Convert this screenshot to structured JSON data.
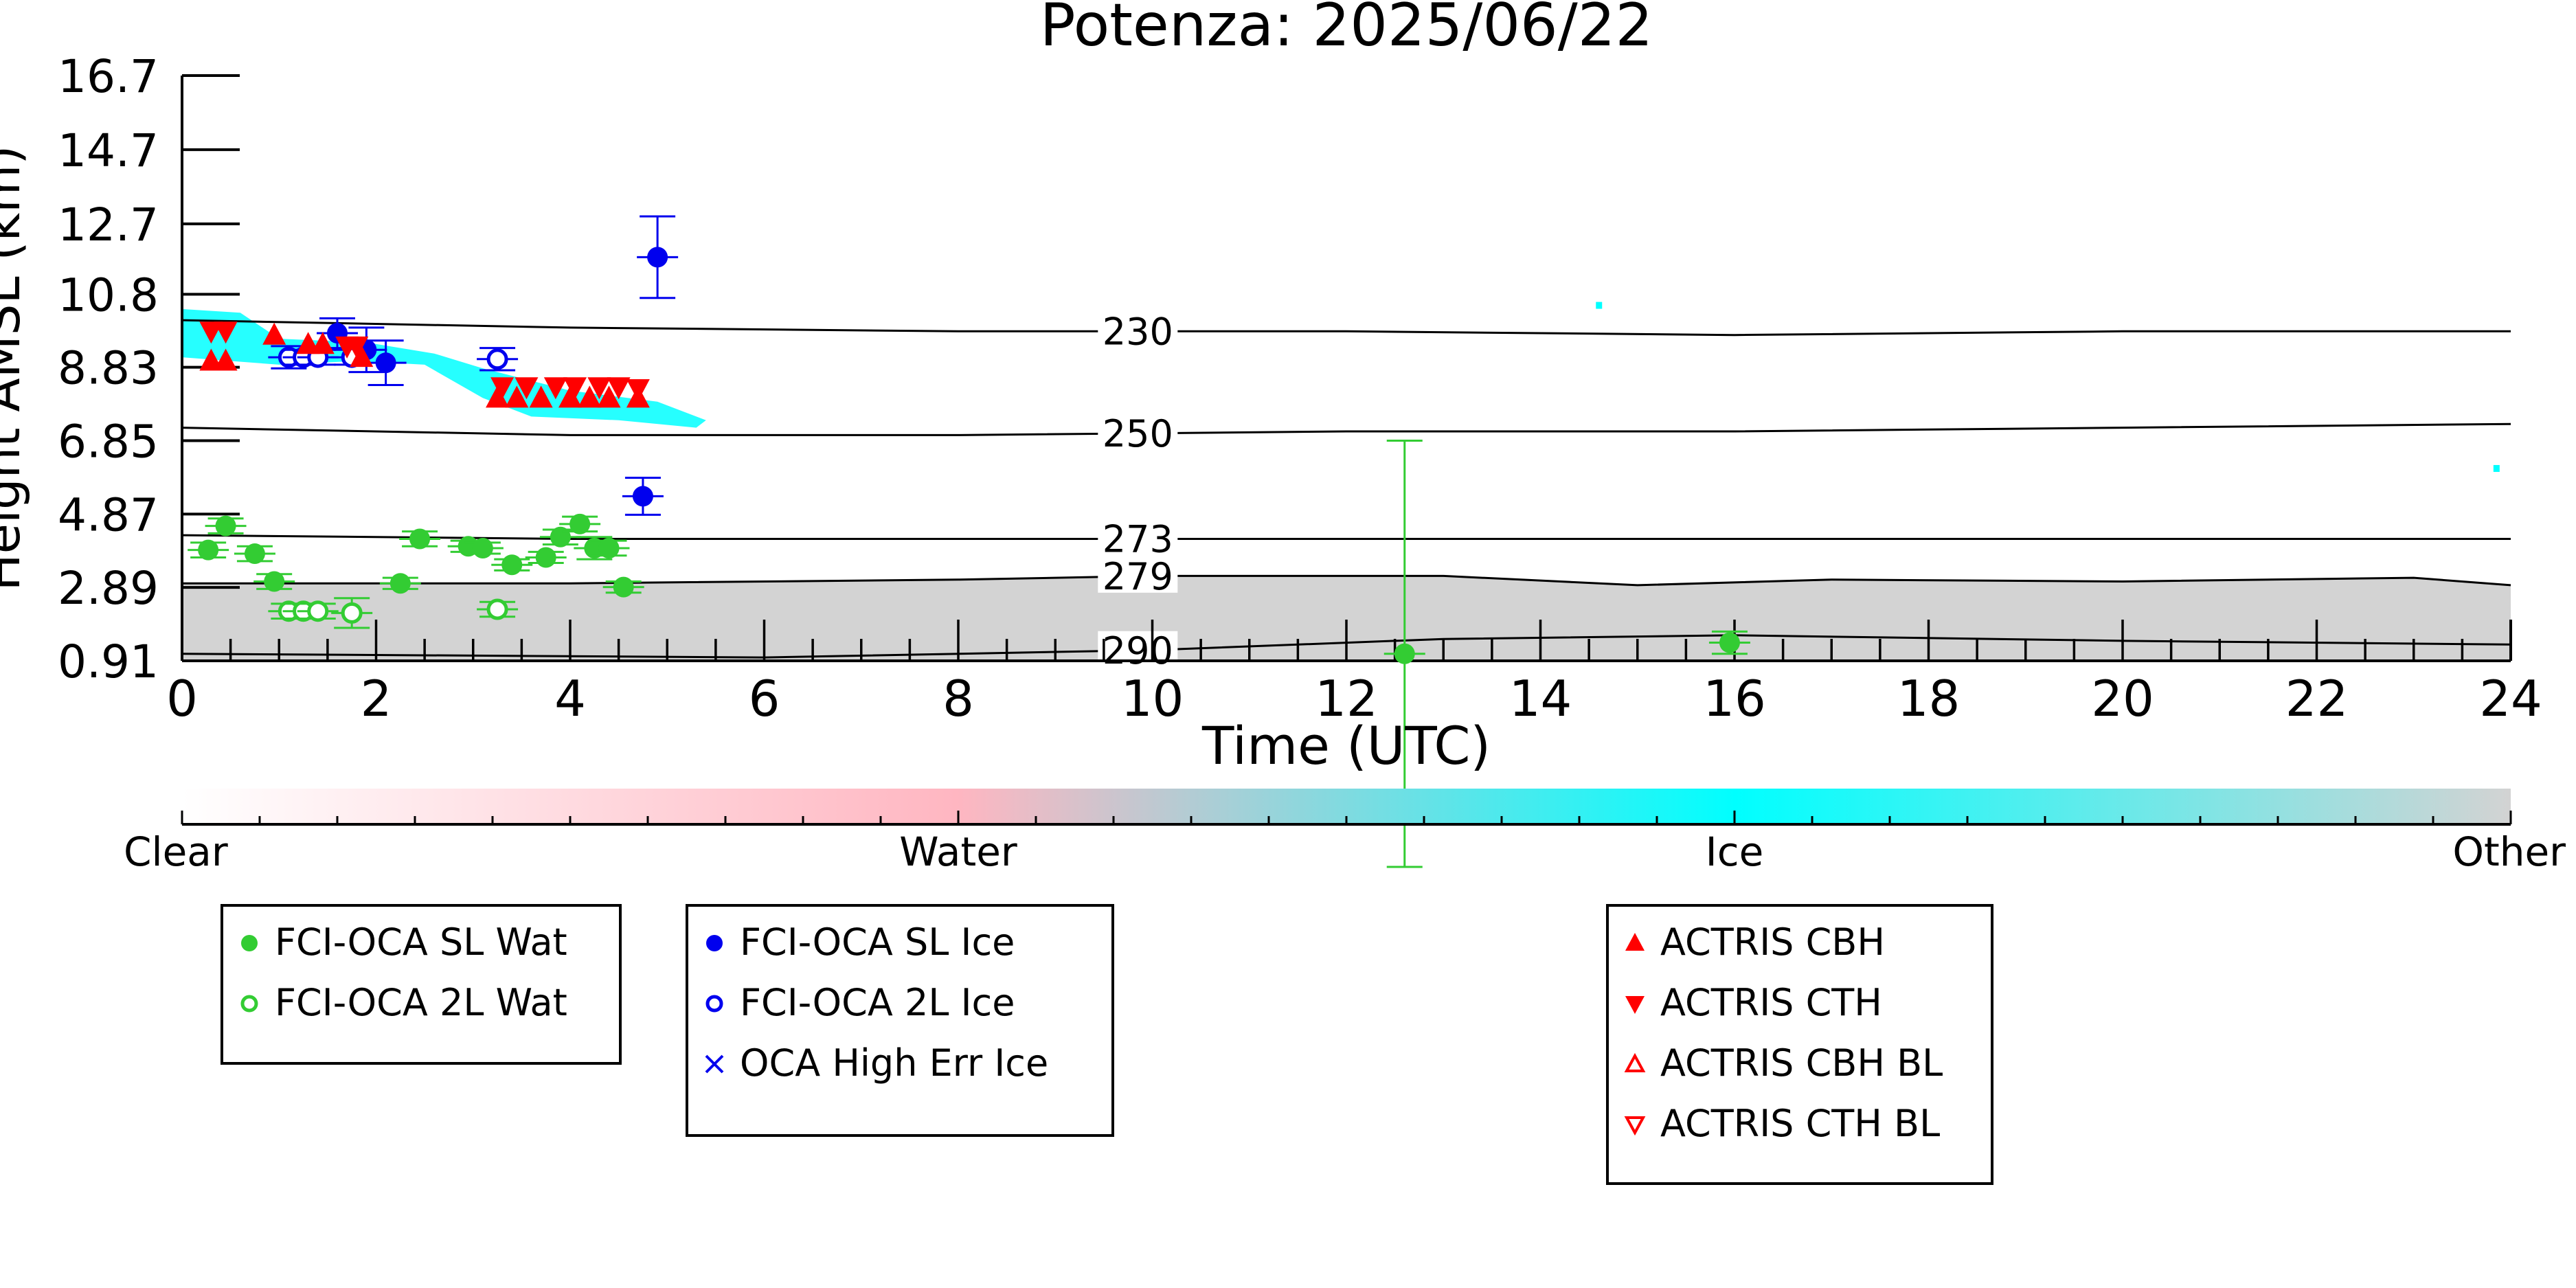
{
  "chart_data": {
    "type": "scatter",
    "title": "Potenza: 2025/06/22",
    "xlabel": "Time (UTC)",
    "ylabel": "Height AMSL (km)",
    "xlim": [
      0,
      24
    ],
    "ylim": [
      0.91,
      16.7
    ],
    "x_ticks": [
      0,
      2,
      4,
      6,
      8,
      10,
      12,
      14,
      16,
      18,
      20,
      22,
      24
    ],
    "y_ticks": [
      "0.91",
      "2.89",
      "4.87",
      "6.85",
      "8.83",
      "10.8",
      "12.7",
      "14.7",
      "16.7"
    ],
    "y_tick_values": [
      0.91,
      2.89,
      4.87,
      6.85,
      8.83,
      10.8,
      12.7,
      14.7,
      16.7
    ],
    "colors": {
      "water_marker": "#33cc33",
      "ice_marker": "#0000ee",
      "actris": "#ff0000",
      "cloud_ice": "#00ffff",
      "other_fill": "#d3d3d3"
    },
    "isotherms": [
      {
        "label": "230",
        "label_x": 9.85,
        "points": [
          [
            0,
            10.1
          ],
          [
            4,
            9.9
          ],
          [
            8,
            9.8
          ],
          [
            12,
            9.8
          ],
          [
            16,
            9.7
          ],
          [
            20,
            9.8
          ],
          [
            24,
            9.8
          ]
        ]
      },
      {
        "label": "250",
        "label_x": 9.85,
        "points": [
          [
            0,
            7.2
          ],
          [
            4,
            7.0
          ],
          [
            8,
            7.0
          ],
          [
            12,
            7.1
          ],
          [
            16,
            7.1
          ],
          [
            20,
            7.2
          ],
          [
            24,
            7.3
          ]
        ]
      },
      {
        "label": "273",
        "label_x": 9.85,
        "points": [
          [
            0,
            4.3
          ],
          [
            4,
            4.2
          ],
          [
            8,
            4.2
          ],
          [
            12,
            4.2
          ],
          [
            16,
            4.2
          ],
          [
            20,
            4.2
          ],
          [
            24,
            4.2
          ]
        ]
      },
      {
        "label": "279",
        "label_x": 9.85,
        "points": [
          [
            0,
            3.0
          ],
          [
            4,
            3.0
          ],
          [
            8,
            3.1
          ],
          [
            10,
            3.2
          ],
          [
            13,
            3.2
          ],
          [
            15,
            2.95
          ],
          [
            17,
            3.1
          ],
          [
            20,
            3.05
          ],
          [
            23,
            3.15
          ],
          [
            24,
            2.95
          ]
        ]
      },
      {
        "label": "290",
        "label_x": 9.85,
        "points": [
          [
            0,
            1.1
          ],
          [
            6,
            1.0
          ],
          [
            10,
            1.2
          ],
          [
            13,
            1.5
          ],
          [
            16,
            1.6
          ],
          [
            20,
            1.45
          ],
          [
            24,
            1.35
          ]
        ]
      }
    ],
    "series": [
      {
        "name": "FCI-OCA SL Wat",
        "marker": "filled-circle",
        "color": "#33cc33",
        "points": [
          [
            0.27,
            3.9,
            0.2
          ],
          [
            0.45,
            4.55,
            0.2
          ],
          [
            0.75,
            3.8,
            0.2
          ],
          [
            0.95,
            3.05,
            0.2
          ],
          [
            2.25,
            3.0,
            0.15
          ],
          [
            2.45,
            4.2,
            0.2
          ],
          [
            2.95,
            4.0,
            0.15
          ],
          [
            3.1,
            3.95,
            0.15
          ],
          [
            3.4,
            3.5,
            0.15
          ],
          [
            3.75,
            3.7,
            0.15
          ],
          [
            3.9,
            4.25,
            0.2
          ],
          [
            4.1,
            4.6,
            0.2
          ],
          [
            4.25,
            3.95,
            0.3
          ],
          [
            4.4,
            3.95,
            0.2
          ],
          [
            4.55,
            2.9,
            0.15
          ],
          [
            12.6,
            1.1,
            5.75
          ],
          [
            15.95,
            1.4,
            0.3
          ]
        ]
      },
      {
        "name": "FCI-OCA 2L Wat",
        "marker": "open-circle",
        "color": "#33cc33",
        "points": [
          [
            1.1,
            2.25,
            0.2
          ],
          [
            1.25,
            2.25,
            0.2
          ],
          [
            1.4,
            2.25,
            0.2
          ],
          [
            1.75,
            2.2,
            0.4
          ],
          [
            3.25,
            2.3,
            0.2
          ]
        ]
      },
      {
        "name": "FCI-OCA SL Ice",
        "marker": "filled-circle",
        "color": "#0000ee",
        "points": [
          [
            1.6,
            9.75,
            0.4
          ],
          [
            1.9,
            9.3,
            0.6
          ],
          [
            2.1,
            8.95,
            0.6
          ],
          [
            4.75,
            5.35,
            0.5
          ],
          [
            4.9,
            11.8,
            1.1
          ]
        ]
      },
      {
        "name": "FCI-OCA 2L Ice",
        "marker": "open-circle",
        "color": "#0000ee",
        "points": [
          [
            1.1,
            9.1,
            0.3
          ],
          [
            1.25,
            9.1,
            0.2
          ],
          [
            1.4,
            9.1,
            0.2
          ],
          [
            1.75,
            9.1,
            0.2
          ],
          [
            3.25,
            9.05,
            0.3
          ]
        ]
      },
      {
        "name": "OCA High Err Ice",
        "marker": "x",
        "color": "#0000ee",
        "points": []
      },
      {
        "name": "ACTRIS CBH",
        "marker": "triangle-up",
        "color": "#ff0000",
        "points": [
          [
            0.3,
            9.0
          ],
          [
            0.45,
            9.0
          ],
          [
            0.95,
            9.7
          ],
          [
            1.3,
            9.45
          ],
          [
            1.45,
            9.45
          ],
          [
            1.85,
            9.1
          ],
          [
            3.25,
            8.0
          ],
          [
            3.45,
            8.0
          ],
          [
            3.7,
            8.0
          ],
          [
            4.0,
            8.0
          ],
          [
            4.2,
            8.0
          ],
          [
            4.4,
            8.0
          ],
          [
            4.7,
            8.0
          ]
        ]
      },
      {
        "name": "ACTRIS CTH",
        "marker": "triangle-down",
        "color": "#ff0000",
        "points": [
          [
            0.3,
            9.8
          ],
          [
            0.45,
            9.8
          ],
          [
            1.7,
            9.4
          ],
          [
            1.8,
            9.4
          ],
          [
            3.3,
            8.3
          ],
          [
            3.55,
            8.3
          ],
          [
            3.85,
            8.3
          ],
          [
            4.05,
            8.3
          ],
          [
            4.3,
            8.3
          ],
          [
            4.5,
            8.3
          ],
          [
            4.7,
            8.25
          ]
        ]
      },
      {
        "name": "ACTRIS CBH BL",
        "marker": "open-triangle-up",
        "color": "#ff0000",
        "points": []
      },
      {
        "name": "ACTRIS CTH BL",
        "marker": "open-triangle-down",
        "color": "#ff0000",
        "points": []
      }
    ],
    "ice_patches": [
      [
        [
          0.0,
          10.4
        ],
        [
          0.6,
          10.3
        ],
        [
          1.0,
          9.6
        ],
        [
          1.9,
          9.5
        ],
        [
          2.6,
          9.2
        ],
        [
          3.1,
          8.8
        ],
        [
          4.0,
          8.2
        ],
        [
          4.9,
          7.9
        ],
        [
          5.4,
          7.4
        ],
        [
          5.3,
          7.2
        ],
        [
          4.5,
          7.4
        ],
        [
          3.6,
          7.5
        ],
        [
          3.1,
          8.0
        ],
        [
          2.5,
          8.9
        ],
        [
          1.8,
          9.0
        ],
        [
          1.0,
          8.9
        ],
        [
          0.5,
          9.0
        ],
        [
          0.0,
          9.1
        ]
      ]
    ],
    "ice_specks": [
      [
        14.6,
        10.5
      ],
      [
        23.85,
        6.1
      ]
    ],
    "other_band_top": [
      [
        0,
        3.0
      ],
      [
        4,
        3.0
      ],
      [
        8,
        3.1
      ],
      [
        10,
        3.2
      ],
      [
        13,
        3.2
      ],
      [
        15,
        2.95
      ],
      [
        17,
        3.1
      ],
      [
        20,
        3.05
      ],
      [
        23,
        3.15
      ],
      [
        24,
        2.95
      ]
    ],
    "colorbar": {
      "labels": [
        "Clear",
        "Water",
        "Ice",
        "Other"
      ],
      "stops": [
        "#ffffff",
        "#ffb6c1",
        "#00ffff",
        "#d3d3d3"
      ]
    },
    "legends": [
      {
        "placement": "bottom-left",
        "entries": [
          "FCI-OCA SL Wat",
          "FCI-OCA 2L Wat"
        ]
      },
      {
        "placement": "bottom-center-left",
        "entries": [
          "FCI-OCA SL Ice",
          "FCI-OCA 2L Ice",
          "OCA High Err Ice"
        ]
      },
      {
        "placement": "bottom-center-right",
        "entries": [
          "ACTRIS CBH",
          "ACTRIS CTH",
          "ACTRIS CBH BL",
          "ACTRIS CTH BL"
        ]
      }
    ]
  }
}
